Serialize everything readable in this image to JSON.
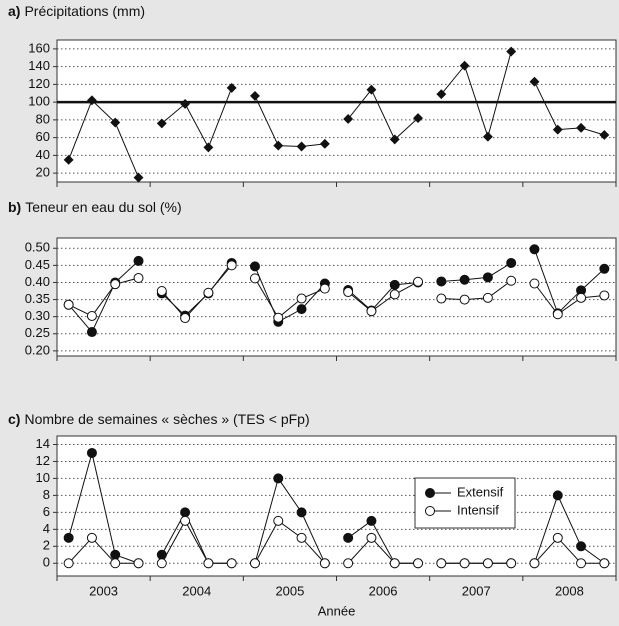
{
  "chart_data": [
    {
      "type": "line",
      "label": "a)",
      "title": "Précipitations (mm)",
      "ylim": [
        10,
        170
      ],
      "yticks": [
        20,
        40,
        60,
        80,
        100,
        120,
        140,
        160
      ],
      "grid": true,
      "hline": 100,
      "marker": "diamond",
      "color": "#111111",
      "values": [
        [
          35,
          102,
          77,
          15
        ],
        [
          76,
          98,
          49,
          116
        ],
        [
          107,
          51,
          50,
          53
        ],
        [
          81,
          114,
          58,
          82
        ],
        [
          109,
          141,
          61,
          157
        ],
        [
          123,
          69,
          71,
          63
        ]
      ]
    },
    {
      "type": "line",
      "label": "b)",
      "title": "Teneur en eau du sol (%)",
      "ylim": [
        0.185,
        0.53
      ],
      "yticks": [
        {
          "value": 0.2,
          "label": "0.20"
        },
        0.25,
        {
          "value": 0.3,
          "label": "0.30"
        },
        0.35,
        {
          "value": 0.4,
          "label": "0.40"
        },
        0.45,
        {
          "value": 0.5,
          "label": "0.50"
        }
      ],
      "grid": true,
      "series": [
        {
          "marker": "circle-filled",
          "color": "#111111",
          "values": [
            [
              0.335,
              0.255,
              0.4,
              0.463
            ],
            [
              0.368,
              0.303,
              0.368,
              0.457
            ],
            [
              0.447,
              0.285,
              0.322,
              0.397
            ],
            [
              0.378,
              0.318,
              0.393,
              0.4
            ],
            [
              0.403,
              0.408,
              0.415,
              0.457
            ],
            [
              0.497,
              0.31,
              0.377,
              0.44
            ]
          ]
        },
        {
          "marker": "circle-open",
          "color": "#111111",
          "values": [
            [
              0.335,
              0.302,
              0.395,
              0.413
            ],
            [
              0.375,
              0.296,
              0.37,
              0.45
            ],
            [
              0.412,
              0.297,
              0.353,
              0.382
            ],
            [
              0.372,
              0.316,
              0.365,
              0.402
            ],
            [
              0.353,
              0.35,
              0.355,
              0.405
            ],
            [
              0.397,
              0.307,
              0.355,
              0.362
            ]
          ]
        }
      ]
    },
    {
      "type": "line",
      "label": "c)",
      "title": "Nombre de semaines « sèches » (TES < pFp)",
      "ylim": [
        -1.5,
        15
      ],
      "yticks": [
        0,
        2,
        4,
        6,
        8,
        10,
        12,
        14
      ],
      "grid": true,
      "categories": [
        "2003",
        "2004",
        "2005",
        "2006",
        "2007",
        "2008"
      ],
      "xlabel": "Année",
      "series": [
        {
          "name": "Extensif",
          "marker": "circle-filled",
          "color": "#111111",
          "values": [
            [
              3,
              13,
              1,
              0
            ],
            [
              1,
              6,
              0,
              0
            ],
            [
              0,
              10,
              6,
              0
            ],
            [
              3,
              5,
              0,
              0
            ],
            [
              0,
              0,
              0,
              0
            ],
            [
              0,
              8,
              2,
              0
            ]
          ]
        },
        {
          "name": "Intensif",
          "marker": "circle-open",
          "color": "#111111",
          "values": [
            [
              0,
              3,
              0,
              0
            ],
            [
              0,
              5,
              0,
              0
            ],
            [
              0,
              5,
              3,
              0
            ],
            [
              0,
              3,
              0,
              0
            ],
            [
              0,
              0,
              0,
              0
            ],
            [
              0,
              3,
              0,
              0
            ]
          ]
        }
      ]
    }
  ]
}
